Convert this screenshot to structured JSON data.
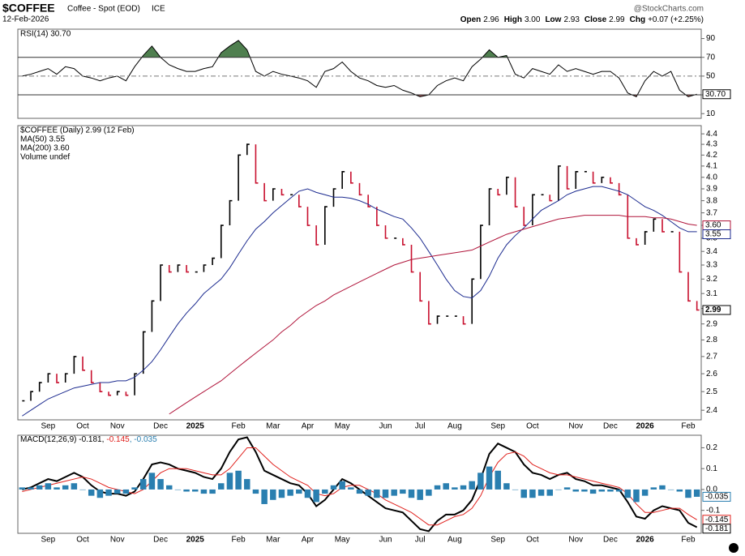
{
  "header": {
    "symbol": "$COFFEE",
    "description": "Coffee - Spot (EOD)",
    "exchange": "ICE",
    "date": "12-Feb-2026",
    "source": "@StockCharts.com",
    "quote": [
      {
        "label": "Open",
        "value": "2.96"
      },
      {
        "label": "High",
        "value": "3.00"
      },
      {
        "label": "Low",
        "value": "2.93"
      },
      {
        "label": "Close",
        "value": "2.99"
      },
      {
        "label": "Chg",
        "value": "+0.07 (+2.25%)"
      }
    ]
  },
  "chart_data": [
    {
      "type": "line",
      "ylim": [
        5,
        100
      ],
      "yticks": [
        10,
        30,
        50,
        70,
        90
      ],
      "overbought": 70,
      "oversold": 30,
      "midline": 50,
      "overbought_color": "#4f7f4f",
      "oversold_color": "#a35a5a",
      "series": [
        {
          "name": "RSI(14) 30.70",
          "color": "#000000",
          "last_label": "30.70",
          "values": [
            50,
            52,
            55,
            58,
            52,
            60,
            58,
            50,
            48,
            45,
            48,
            50,
            45,
            60,
            72,
            82,
            70,
            62,
            58,
            55,
            55,
            58,
            60,
            75,
            82,
            88,
            78,
            55,
            50,
            55,
            52,
            50,
            48,
            45,
            38,
            55,
            58,
            65,
            55,
            48,
            45,
            40,
            38,
            40,
            35,
            32,
            28,
            30,
            40,
            45,
            48,
            45,
            60,
            68,
            78,
            70,
            72,
            52,
            48,
            58,
            55,
            52,
            62,
            55,
            58,
            55,
            52,
            55,
            55,
            48,
            32,
            28,
            45,
            55,
            50,
            55,
            35,
            28,
            30.7
          ]
        }
      ]
    },
    {
      "type": "stock",
      "log_scale": true,
      "ylim": [
        2.35,
        4.48
      ],
      "yticks": [
        2.4,
        2.5,
        2.6,
        2.7,
        2.8,
        2.9,
        {
          "value": 3,
          "label": "3.0"
        },
        3.1,
        3.2,
        3.3,
        3.4,
        3.5,
        3.6,
        3.7,
        3.8,
        3.9,
        {
          "value": 4,
          "label": "4.0"
        },
        4.1,
        4.2,
        4.3,
        4.4
      ],
      "categories": [
        null,
        null,
        null,
        "Sep",
        null,
        null,
        null,
        "Oct",
        null,
        null,
        null,
        "Nov",
        null,
        null,
        null,
        null,
        "Dec",
        null,
        null,
        null,
        "2025",
        null,
        null,
        null,
        null,
        "Feb",
        null,
        null,
        null,
        "Mar",
        null,
        null,
        null,
        "Apr",
        null,
        null,
        null,
        "May",
        null,
        null,
        null,
        null,
        "Jun",
        null,
        null,
        null,
        "Jul",
        null,
        null,
        null,
        "Aug",
        null,
        null,
        null,
        null,
        "Sep",
        null,
        null,
        null,
        "Oct",
        null,
        null,
        null,
        null,
        "Nov",
        null,
        null,
        null,
        "Dec",
        null,
        null,
        null,
        "2026",
        null,
        null,
        null,
        null,
        "Feb",
        null
      ],
      "volume_label": "Volume undef",
      "series": [
        {
          "name": "$COFFEE (Daily) 2.99 (12 Feb)",
          "style": "bars",
          "color": "#000000",
          "down_color": "#c8102e",
          "last_label": "2.99",
          "values": [
            2.45,
            2.5,
            2.55,
            2.6,
            2.55,
            2.6,
            2.7,
            2.62,
            2.55,
            2.5,
            2.48,
            2.5,
            2.48,
            2.6,
            2.85,
            3.05,
            3.3,
            3.25,
            3.3,
            3.25,
            3.25,
            3.3,
            3.35,
            3.6,
            3.8,
            4.2,
            4.3,
            3.95,
            3.8,
            3.9,
            3.85,
            3.85,
            3.75,
            3.6,
            3.45,
            3.75,
            3.9,
            4.05,
            3.95,
            3.85,
            3.75,
            3.6,
            3.5,
            3.5,
            3.45,
            3.25,
            3.05,
            2.9,
            2.95,
            2.95,
            2.95,
            2.9,
            3.2,
            3.6,
            3.9,
            3.85,
            4.0,
            3.75,
            3.6,
            3.85,
            3.85,
            3.8,
            4.1,
            3.9,
            4.05,
            4.05,
            3.95,
            4.0,
            3.95,
            3.85,
            3.5,
            3.45,
            3.55,
            3.65,
            3.55,
            3.55,
            3.25,
            3.05,
            2.99
          ]
        },
        {
          "name": "MA(50) 3.55",
          "style": "line",
          "color": "#1b2a8f",
          "last_label": "3.55",
          "values": [
            2.37,
            2.4,
            2.43,
            2.46,
            2.48,
            2.5,
            2.52,
            2.53,
            2.54,
            2.55,
            2.55,
            2.56,
            2.56,
            2.58,
            2.62,
            2.67,
            2.74,
            2.82,
            2.9,
            2.97,
            3.03,
            3.1,
            3.15,
            3.2,
            3.28,
            3.38,
            3.48,
            3.57,
            3.63,
            3.7,
            3.76,
            3.82,
            3.88,
            3.9,
            3.87,
            3.85,
            3.83,
            3.83,
            3.82,
            3.8,
            3.77,
            3.73,
            3.7,
            3.67,
            3.65,
            3.58,
            3.5,
            3.4,
            3.3,
            3.2,
            3.12,
            3.08,
            3.07,
            3.12,
            3.22,
            3.35,
            3.45,
            3.52,
            3.58,
            3.65,
            3.72,
            3.76,
            3.8,
            3.85,
            3.88,
            3.9,
            3.92,
            3.92,
            3.9,
            3.88,
            3.85,
            3.8,
            3.75,
            3.72,
            3.68,
            3.63,
            3.58,
            3.55,
            3.55
          ]
        },
        {
          "name": "MA(200) 3.60",
          "style": "line",
          "color": "#b0143a",
          "last_label": "3.60",
          "values": [
            null,
            null,
            null,
            null,
            null,
            null,
            null,
            null,
            null,
            null,
            null,
            null,
            null,
            null,
            null,
            null,
            null,
            2.38,
            2.41,
            2.44,
            2.47,
            2.5,
            2.53,
            2.56,
            2.6,
            2.64,
            2.68,
            2.72,
            2.76,
            2.8,
            2.85,
            2.89,
            2.94,
            2.98,
            3.02,
            3.05,
            3.09,
            3.12,
            3.15,
            3.18,
            3.21,
            3.24,
            3.27,
            3.3,
            3.32,
            3.34,
            3.35,
            3.36,
            3.37,
            3.38,
            3.39,
            3.4,
            3.41,
            3.44,
            3.47,
            3.5,
            3.53,
            3.55,
            3.57,
            3.59,
            3.61,
            3.63,
            3.65,
            3.66,
            3.67,
            3.68,
            3.68,
            3.68,
            3.68,
            3.68,
            3.67,
            3.67,
            3.67,
            3.66,
            3.66,
            3.65,
            3.63,
            3.61,
            3.6
          ]
        }
      ]
    },
    {
      "type": "macd",
      "ylim": [
        -0.21,
        0.26
      ],
      "yticks": [
        0.2,
        0.1,
        {
          "value": 0,
          "label": "0.0"
        },
        -0.1
      ],
      "legend_inline": true,
      "categories": [
        null,
        null,
        null,
        "Sep",
        null,
        null,
        null,
        "Oct",
        null,
        null,
        null,
        "Nov",
        null,
        null,
        null,
        null,
        "Dec",
        null,
        null,
        null,
        "2025",
        null,
        null,
        null,
        null,
        "Feb",
        null,
        null,
        null,
        "Mar",
        null,
        null,
        null,
        "Apr",
        null,
        null,
        null,
        "May",
        null,
        null,
        null,
        null,
        "Jun",
        null,
        null,
        null,
        "Jul",
        null,
        null,
        null,
        "Aug",
        null,
        null,
        null,
        null,
        "Sep",
        null,
        null,
        null,
        "Oct",
        null,
        null,
        null,
        null,
        "Nov",
        null,
        null,
        null,
        "Dec",
        null,
        null,
        null,
        "2026",
        null,
        null,
        null,
        null,
        "Feb",
        null
      ],
      "series": [
        {
          "name": "MACD(12,26,9) -0.181,",
          "style": "line",
          "color": "#000000",
          "width": 2,
          "last_label": "-0.181",
          "values": [
            0.0,
            0.01,
            0.03,
            0.05,
            0.04,
            0.06,
            0.08,
            0.06,
            0.02,
            -0.01,
            -0.02,
            -0.02,
            -0.03,
            -0.01,
            0.05,
            0.12,
            0.13,
            0.12,
            0.1,
            0.09,
            0.08,
            0.06,
            0.05,
            0.1,
            0.18,
            0.24,
            0.25,
            0.18,
            0.09,
            0.07,
            0.05,
            0.03,
            0.02,
            -0.02,
            -0.08,
            -0.05,
            0.0,
            0.05,
            0.03,
            0.0,
            -0.03,
            -0.06,
            -0.09,
            -0.1,
            -0.11,
            -0.15,
            -0.19,
            -0.2,
            -0.15,
            -0.12,
            -0.12,
            -0.1,
            -0.05,
            0.05,
            0.17,
            0.22,
            0.2,
            0.18,
            0.12,
            0.08,
            0.07,
            0.05,
            0.07,
            0.08,
            0.05,
            0.04,
            0.02,
            0.02,
            0.01,
            0.0,
            -0.06,
            -0.13,
            -0.14,
            -0.1,
            -0.08,
            -0.09,
            -0.1,
            -0.16,
            -0.181
          ]
        },
        {
          "name": "-0.145",
          "style": "line",
          "color": "#e0201c",
          "width": 1,
          "last_label": "-0.145",
          "values": [
            -0.01,
            0.0,
            0.01,
            0.02,
            0.03,
            0.04,
            0.05,
            0.06,
            0.05,
            0.03,
            0.01,
            0.0,
            -0.01,
            -0.02,
            0.0,
            0.04,
            0.08,
            0.1,
            0.1,
            0.1,
            0.09,
            0.08,
            0.07,
            0.07,
            0.1,
            0.15,
            0.2,
            0.2,
            0.16,
            0.12,
            0.09,
            0.06,
            0.04,
            0.02,
            -0.02,
            -0.03,
            -0.02,
            0.01,
            0.02,
            0.02,
            0.0,
            -0.02,
            -0.05,
            -0.07,
            -0.09,
            -0.11,
            -0.14,
            -0.17,
            -0.17,
            -0.15,
            -0.13,
            -0.12,
            -0.09,
            -0.03,
            0.06,
            0.13,
            0.17,
            0.18,
            0.16,
            0.12,
            0.1,
            0.08,
            0.07,
            0.07,
            0.06,
            0.05,
            0.04,
            0.03,
            0.02,
            0.01,
            -0.02,
            -0.07,
            -0.11,
            -0.11,
            -0.1,
            -0.09,
            -0.09,
            -0.12,
            -0.145
          ]
        },
        {
          "name": ", -0.035",
          "style": "histogram",
          "color": "#2a7fb0",
          "last_label": "-0.035",
          "values": [
            0.01,
            0.01,
            0.02,
            0.03,
            0.01,
            0.02,
            0.03,
            0.0,
            -0.03,
            -0.04,
            -0.03,
            -0.02,
            -0.02,
            0.01,
            0.05,
            0.08,
            0.05,
            0.02,
            0.0,
            -0.01,
            -0.01,
            -0.02,
            -0.02,
            0.03,
            0.08,
            0.09,
            0.05,
            -0.02,
            -0.07,
            -0.05,
            -0.04,
            -0.03,
            -0.02,
            -0.04,
            -0.06,
            -0.02,
            0.02,
            0.04,
            0.01,
            -0.02,
            -0.03,
            -0.04,
            -0.04,
            -0.03,
            -0.02,
            -0.04,
            -0.05,
            -0.03,
            0.02,
            0.03,
            0.01,
            0.02,
            0.04,
            0.08,
            0.11,
            0.09,
            0.03,
            0.0,
            -0.04,
            -0.04,
            -0.03,
            -0.03,
            0.0,
            0.01,
            -0.01,
            -0.01,
            -0.02,
            -0.01,
            -0.01,
            -0.01,
            -0.04,
            -0.06,
            -0.03,
            0.01,
            0.02,
            0.0,
            -0.01,
            -0.04,
            -0.035
          ]
        }
      ]
    }
  ]
}
